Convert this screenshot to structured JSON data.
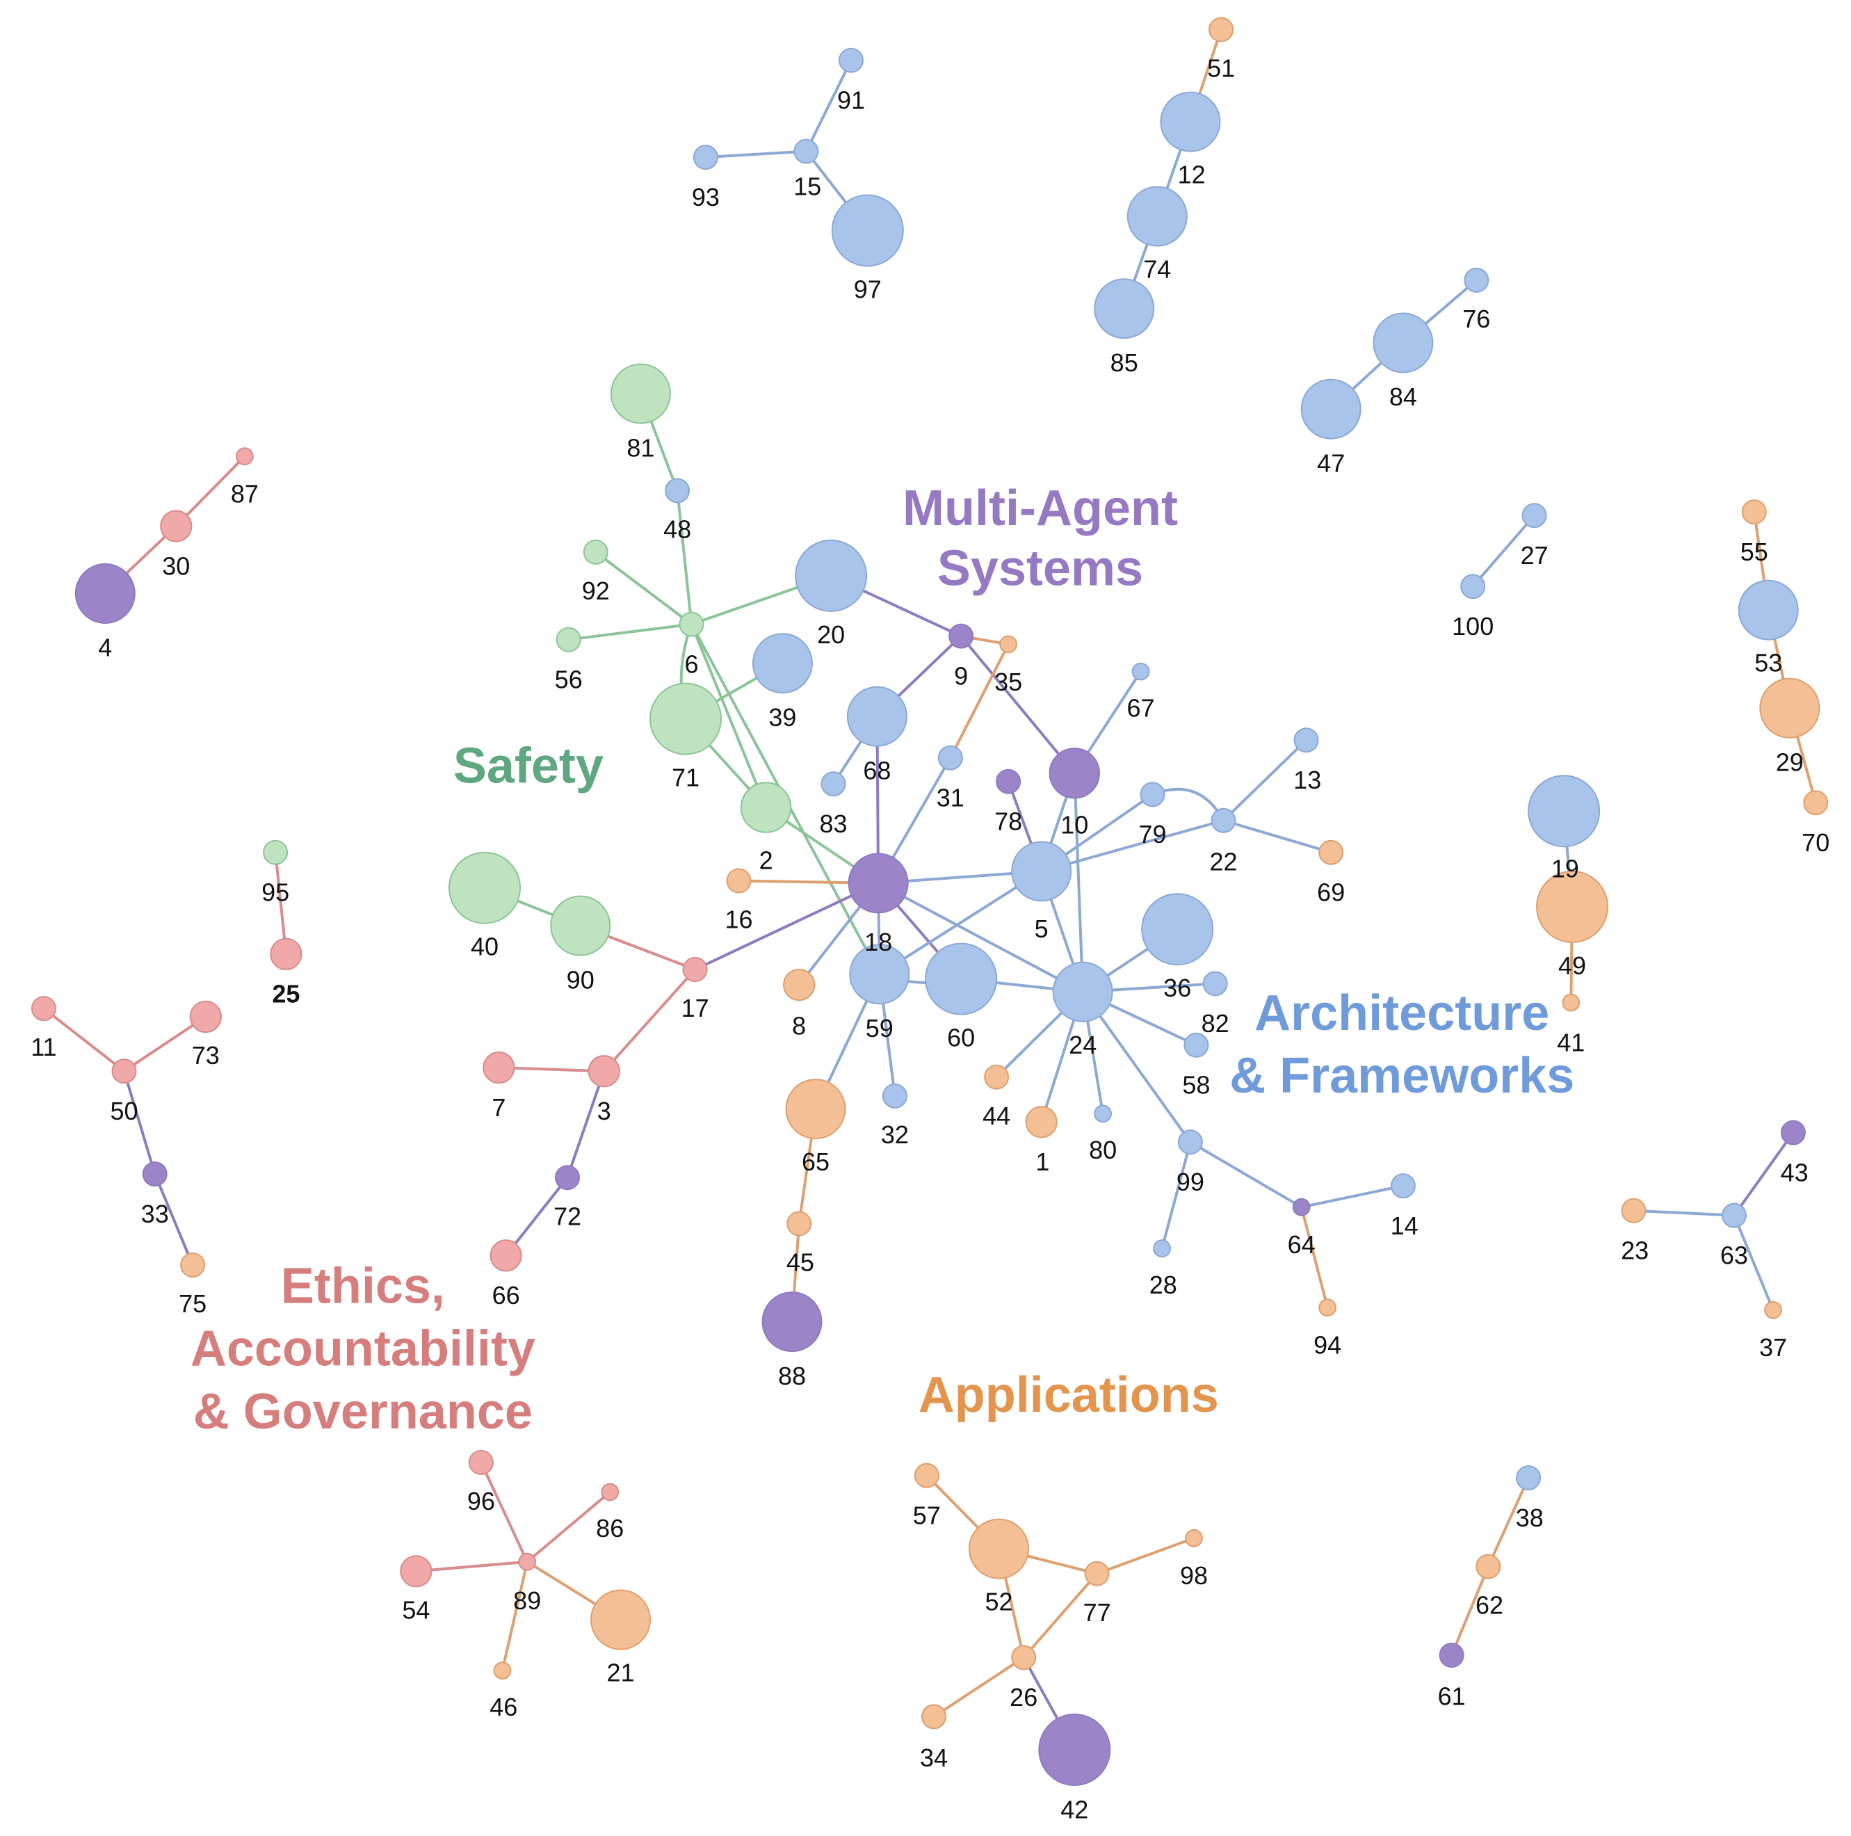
{
  "colors": {
    "multi_agent": "#9b84c8",
    "architecture": "#a9c4ea",
    "applications": "#f4bf94",
    "ethics": "#f0a8a8",
    "safety": "#bfe3bf"
  },
  "edge_colors": {
    "multi_agent": "#8e7bc0",
    "architecture": "#8ca8d4",
    "applications": "#dda070",
    "ethics": "#d88c8c",
    "safety": "#8cc49a"
  },
  "clusters": [
    {
      "id": "multi_agent",
      "lines": [
        "Multi-Agent",
        "Systems"
      ],
      "color": "#9579c2"
    },
    {
      "id": "safety",
      "lines": [
        "Safety"
      ],
      "color": "#5ea781"
    },
    {
      "id": "architecture",
      "lines": [
        "Architecture",
        "& Frameworks"
      ],
      "color": "#6f9bdb"
    },
    {
      "id": "ethics",
      "lines": [
        "Ethics,",
        "Accountability",
        "& Governance"
      ],
      "color": "#d67d7d"
    },
    {
      "id": "applications",
      "lines": [
        "Applications"
      ],
      "color": "#e3944d"
    }
  ],
  "nodes": [
    {
      "id": "1",
      "category": "applications",
      "size": "s"
    },
    {
      "id": "2",
      "category": "safety",
      "size": "m"
    },
    {
      "id": "3",
      "category": "ethics",
      "size": "s"
    },
    {
      "id": "4",
      "category": "multi_agent",
      "size": "l"
    },
    {
      "id": "5",
      "category": "architecture",
      "size": "l"
    },
    {
      "id": "6",
      "category": "safety",
      "size": "xs"
    },
    {
      "id": "7",
      "category": "ethics",
      "size": "s"
    },
    {
      "id": "8",
      "category": "applications",
      "size": "s"
    },
    {
      "id": "9",
      "category": "multi_agent",
      "size": "xs"
    },
    {
      "id": "10",
      "category": "multi_agent",
      "size": "m"
    },
    {
      "id": "11",
      "category": "ethics",
      "size": "xs"
    },
    {
      "id": "12",
      "category": "architecture",
      "size": "l"
    },
    {
      "id": "13",
      "category": "architecture",
      "size": "xs"
    },
    {
      "id": "14",
      "category": "architecture",
      "size": "xs"
    },
    {
      "id": "15",
      "category": "architecture",
      "size": "xs"
    },
    {
      "id": "16",
      "category": "applications",
      "size": "xs"
    },
    {
      "id": "17",
      "category": "ethics",
      "size": "xs"
    },
    {
      "id": "18",
      "category": "multi_agent",
      "size": "l"
    },
    {
      "id": "19",
      "category": "architecture",
      "size": "xl"
    },
    {
      "id": "20",
      "category": "architecture",
      "size": "xl"
    },
    {
      "id": "21",
      "category": "applications",
      "size": "l"
    },
    {
      "id": "22",
      "category": "architecture",
      "size": "xs"
    },
    {
      "id": "23",
      "category": "applications",
      "size": "xs"
    },
    {
      "id": "24",
      "category": "architecture",
      "size": "l"
    },
    {
      "id": "25",
      "category": "ethics",
      "size": "s",
      "bold": true
    },
    {
      "id": "26",
      "category": "applications",
      "size": "xs"
    },
    {
      "id": "27",
      "category": "architecture",
      "size": "xs"
    },
    {
      "id": "28",
      "category": "architecture",
      "size": "xxs"
    },
    {
      "id": "29",
      "category": "applications",
      "size": "l"
    },
    {
      "id": "30",
      "category": "ethics",
      "size": "s"
    },
    {
      "id": "31",
      "category": "architecture",
      "size": "xs"
    },
    {
      "id": "32",
      "category": "architecture",
      "size": "xs"
    },
    {
      "id": "33",
      "category": "multi_agent",
      "size": "xs"
    },
    {
      "id": "34",
      "category": "applications",
      "size": "xs"
    },
    {
      "id": "35",
      "category": "applications",
      "size": "xxs"
    },
    {
      "id": "36",
      "category": "architecture",
      "size": "xl"
    },
    {
      "id": "37",
      "category": "applications",
      "size": "xxs"
    },
    {
      "id": "38",
      "category": "architecture",
      "size": "xs"
    },
    {
      "id": "39",
      "category": "architecture",
      "size": "l"
    },
    {
      "id": "40",
      "category": "safety",
      "size": "xl"
    },
    {
      "id": "41",
      "category": "applications",
      "size": "xxs"
    },
    {
      "id": "42",
      "category": "multi_agent",
      "size": "xl"
    },
    {
      "id": "43",
      "category": "multi_agent",
      "size": "xs"
    },
    {
      "id": "44",
      "category": "applications",
      "size": "xs"
    },
    {
      "id": "45",
      "category": "applications",
      "size": "xs"
    },
    {
      "id": "46",
      "category": "applications",
      "size": "xxs"
    },
    {
      "id": "47",
      "category": "architecture",
      "size": "l"
    },
    {
      "id": "48",
      "category": "architecture",
      "size": "xs"
    },
    {
      "id": "49",
      "category": "applications",
      "size": "xl"
    },
    {
      "id": "50",
      "category": "ethics",
      "size": "xs"
    },
    {
      "id": "51",
      "category": "applications",
      "size": "xs"
    },
    {
      "id": "52",
      "category": "applications",
      "size": "l"
    },
    {
      "id": "53",
      "category": "architecture",
      "size": "l"
    },
    {
      "id": "54",
      "category": "ethics",
      "size": "s"
    },
    {
      "id": "55",
      "category": "applications",
      "size": "xs"
    },
    {
      "id": "56",
      "category": "safety",
      "size": "xs"
    },
    {
      "id": "57",
      "category": "applications",
      "size": "xs"
    },
    {
      "id": "58",
      "category": "architecture",
      "size": "xs"
    },
    {
      "id": "59",
      "category": "architecture",
      "size": "l"
    },
    {
      "id": "60",
      "category": "architecture",
      "size": "xl"
    },
    {
      "id": "61",
      "category": "multi_agent",
      "size": "xs"
    },
    {
      "id": "62",
      "category": "applications",
      "size": "xs"
    },
    {
      "id": "63",
      "category": "architecture",
      "size": "xs"
    },
    {
      "id": "64",
      "category": "multi_agent",
      "size": "xxs"
    },
    {
      "id": "65",
      "category": "applications",
      "size": "l"
    },
    {
      "id": "66",
      "category": "ethics",
      "size": "s"
    },
    {
      "id": "67",
      "category": "architecture",
      "size": "xxs"
    },
    {
      "id": "68",
      "category": "architecture",
      "size": "l"
    },
    {
      "id": "69",
      "category": "applications",
      "size": "xs"
    },
    {
      "id": "70",
      "category": "applications",
      "size": "xs"
    },
    {
      "id": "71",
      "category": "safety",
      "size": "xl"
    },
    {
      "id": "72",
      "category": "multi_agent",
      "size": "xs"
    },
    {
      "id": "73",
      "category": "ethics",
      "size": "s"
    },
    {
      "id": "74",
      "category": "architecture",
      "size": "l"
    },
    {
      "id": "75",
      "category": "applications",
      "size": "xs"
    },
    {
      "id": "76",
      "category": "architecture",
      "size": "xs"
    },
    {
      "id": "77",
      "category": "applications",
      "size": "xs"
    },
    {
      "id": "78",
      "category": "multi_agent",
      "size": "xs"
    },
    {
      "id": "79",
      "category": "architecture",
      "size": "xs"
    },
    {
      "id": "80",
      "category": "architecture",
      "size": "xxs"
    },
    {
      "id": "81",
      "category": "safety",
      "size": "l"
    },
    {
      "id": "82",
      "category": "architecture",
      "size": "xs"
    },
    {
      "id": "83",
      "category": "architecture",
      "size": "xs"
    },
    {
      "id": "84",
      "category": "architecture",
      "size": "l"
    },
    {
      "id": "85",
      "category": "architecture",
      "size": "l"
    },
    {
      "id": "86",
      "category": "ethics",
      "size": "xxs"
    },
    {
      "id": "87",
      "category": "ethics",
      "size": "xxs"
    },
    {
      "id": "88",
      "category": "multi_agent",
      "size": "l"
    },
    {
      "id": "89",
      "category": "ethics",
      "size": "xxs"
    },
    {
      "id": "90",
      "category": "safety",
      "size": "l"
    },
    {
      "id": "91",
      "category": "architecture",
      "size": "xs"
    },
    {
      "id": "92",
      "category": "safety",
      "size": "xs"
    },
    {
      "id": "93",
      "category": "architecture",
      "size": "xs"
    },
    {
      "id": "94",
      "category": "applications",
      "size": "xxs"
    },
    {
      "id": "95",
      "category": "safety",
      "size": "xs"
    },
    {
      "id": "96",
      "category": "ethics",
      "size": "xs"
    },
    {
      "id": "97",
      "category": "architecture",
      "size": "xl"
    },
    {
      "id": "98",
      "category": "applications",
      "size": "xxs"
    },
    {
      "id": "99",
      "category": "architecture",
      "size": "xs"
    },
    {
      "id": "100",
      "category": "architecture",
      "size": "xs"
    }
  ],
  "edges": [
    [
      "91",
      "15",
      "architecture"
    ],
    [
      "93",
      "15",
      "architecture"
    ],
    [
      "15",
      "97",
      "architecture"
    ],
    [
      "51",
      "12",
      "applications"
    ],
    [
      "12",
      "74",
      "architecture"
    ],
    [
      "74",
      "85",
      "architecture"
    ],
    [
      "76",
      "84",
      "architecture"
    ],
    [
      "84",
      "47",
      "architecture"
    ],
    [
      "27",
      "100",
      "architecture"
    ],
    [
      "55",
      "53",
      "applications"
    ],
    [
      "53",
      "29",
      "applications"
    ],
    [
      "29",
      "70",
      "applications"
    ],
    [
      "19",
      "49",
      "architecture"
    ],
    [
      "49",
      "41",
      "applications"
    ],
    [
      "87",
      "30",
      "ethics"
    ],
    [
      "30",
      "4",
      "ethics"
    ],
    [
      "95",
      "25",
      "ethics"
    ],
    [
      "11",
      "50",
      "ethics"
    ],
    [
      "73",
      "50",
      "ethics"
    ],
    [
      "50",
      "33",
      "multi_agent"
    ],
    [
      "33",
      "75",
      "multi_agent"
    ],
    [
      "43",
      "63",
      "multi_agent"
    ],
    [
      "23",
      "63",
      "architecture"
    ],
    [
      "63",
      "37",
      "architecture"
    ],
    [
      "38",
      "62",
      "applications"
    ],
    [
      "62",
      "61",
      "applications"
    ],
    [
      "96",
      "89",
      "ethics"
    ],
    [
      "86",
      "89",
      "ethics"
    ],
    [
      "54",
      "89",
      "ethics"
    ],
    [
      "89",
      "46",
      "applications"
    ],
    [
      "89",
      "21",
      "applications"
    ],
    [
      "57",
      "52",
      "applications"
    ],
    [
      "52",
      "77",
      "applications"
    ],
    [
      "52",
      "26",
      "applications"
    ],
    [
      "26",
      "77",
      "applications"
    ],
    [
      "77",
      "98",
      "applications"
    ],
    [
      "26",
      "34",
      "applications"
    ],
    [
      "26",
      "42",
      "multi_agent"
    ],
    [
      "81",
      "48",
      "safety"
    ],
    [
      "48",
      "6",
      "safety"
    ],
    [
      "92",
      "6",
      "safety"
    ],
    [
      "56",
      "6",
      "safety"
    ],
    [
      "6",
      "20",
      "safety"
    ],
    [
      "6",
      "71",
      "safety"
    ],
    [
      "6",
      "2",
      "safety"
    ],
    [
      "6",
      "59",
      "safety"
    ],
    [
      "71",
      "39",
      "safety"
    ],
    [
      "71",
      "2",
      "safety"
    ],
    [
      "2",
      "18",
      "safety"
    ],
    [
      "20",
      "9",
      "multi_agent"
    ],
    [
      "9",
      "68",
      "multi_agent"
    ],
    [
      "9",
      "10",
      "multi_agent"
    ],
    [
      "9",
      "35",
      "applications"
    ],
    [
      "35",
      "31",
      "applications"
    ],
    [
      "68",
      "83",
      "architecture"
    ],
    [
      "68",
      "18",
      "multi_agent"
    ],
    [
      "31",
      "18",
      "architecture"
    ],
    [
      "16",
      "18",
      "applications"
    ],
    [
      "18",
      "17",
      "multi_agent"
    ],
    [
      "18",
      "8",
      "architecture"
    ],
    [
      "18",
      "59",
      "architecture"
    ],
    [
      "18",
      "60",
      "multi_agent"
    ],
    [
      "18",
      "5",
      "architecture"
    ],
    [
      "18",
      "24",
      "architecture"
    ],
    [
      "40",
      "90",
      "safety"
    ],
    [
      "90",
      "17",
      "ethics"
    ],
    [
      "17",
      "3",
      "ethics"
    ],
    [
      "7",
      "3",
      "ethics"
    ],
    [
      "3",
      "72",
      "multi_agent"
    ],
    [
      "72",
      "66",
      "multi_agent"
    ],
    [
      "59",
      "60",
      "architecture"
    ],
    [
      "60",
      "24",
      "architecture"
    ],
    [
      "59",
      "65",
      "architecture"
    ],
    [
      "59",
      "32",
      "architecture"
    ],
    [
      "65",
      "45",
      "applications"
    ],
    [
      "45",
      "88",
      "applications"
    ],
    [
      "78",
      "5",
      "multi_agent"
    ],
    [
      "10",
      "5",
      "architecture"
    ],
    [
      "10",
      "67",
      "architecture"
    ],
    [
      "10",
      "24",
      "architecture"
    ],
    [
      "5",
      "79",
      "architecture"
    ],
    [
      "5",
      "22",
      "architecture"
    ],
    [
      "5",
      "24",
      "architecture"
    ],
    [
      "5",
      "59",
      "architecture"
    ],
    [
      "79",
      "22",
      "architecture"
    ],
    [
      "22",
      "13",
      "architecture"
    ],
    [
      "22",
      "69",
      "architecture"
    ],
    [
      "24",
      "36",
      "architecture"
    ],
    [
      "24",
      "82",
      "architecture"
    ],
    [
      "24",
      "58",
      "architecture"
    ],
    [
      "24",
      "44",
      "architecture"
    ],
    [
      "24",
      "1",
      "architecture"
    ],
    [
      "24",
      "80",
      "architecture"
    ],
    [
      "24",
      "99",
      "architecture"
    ],
    [
      "99",
      "28",
      "architecture"
    ],
    [
      "99",
      "64",
      "architecture"
    ],
    [
      "64",
      "14",
      "architecture"
    ],
    [
      "64",
      "94",
      "applications"
    ]
  ]
}
